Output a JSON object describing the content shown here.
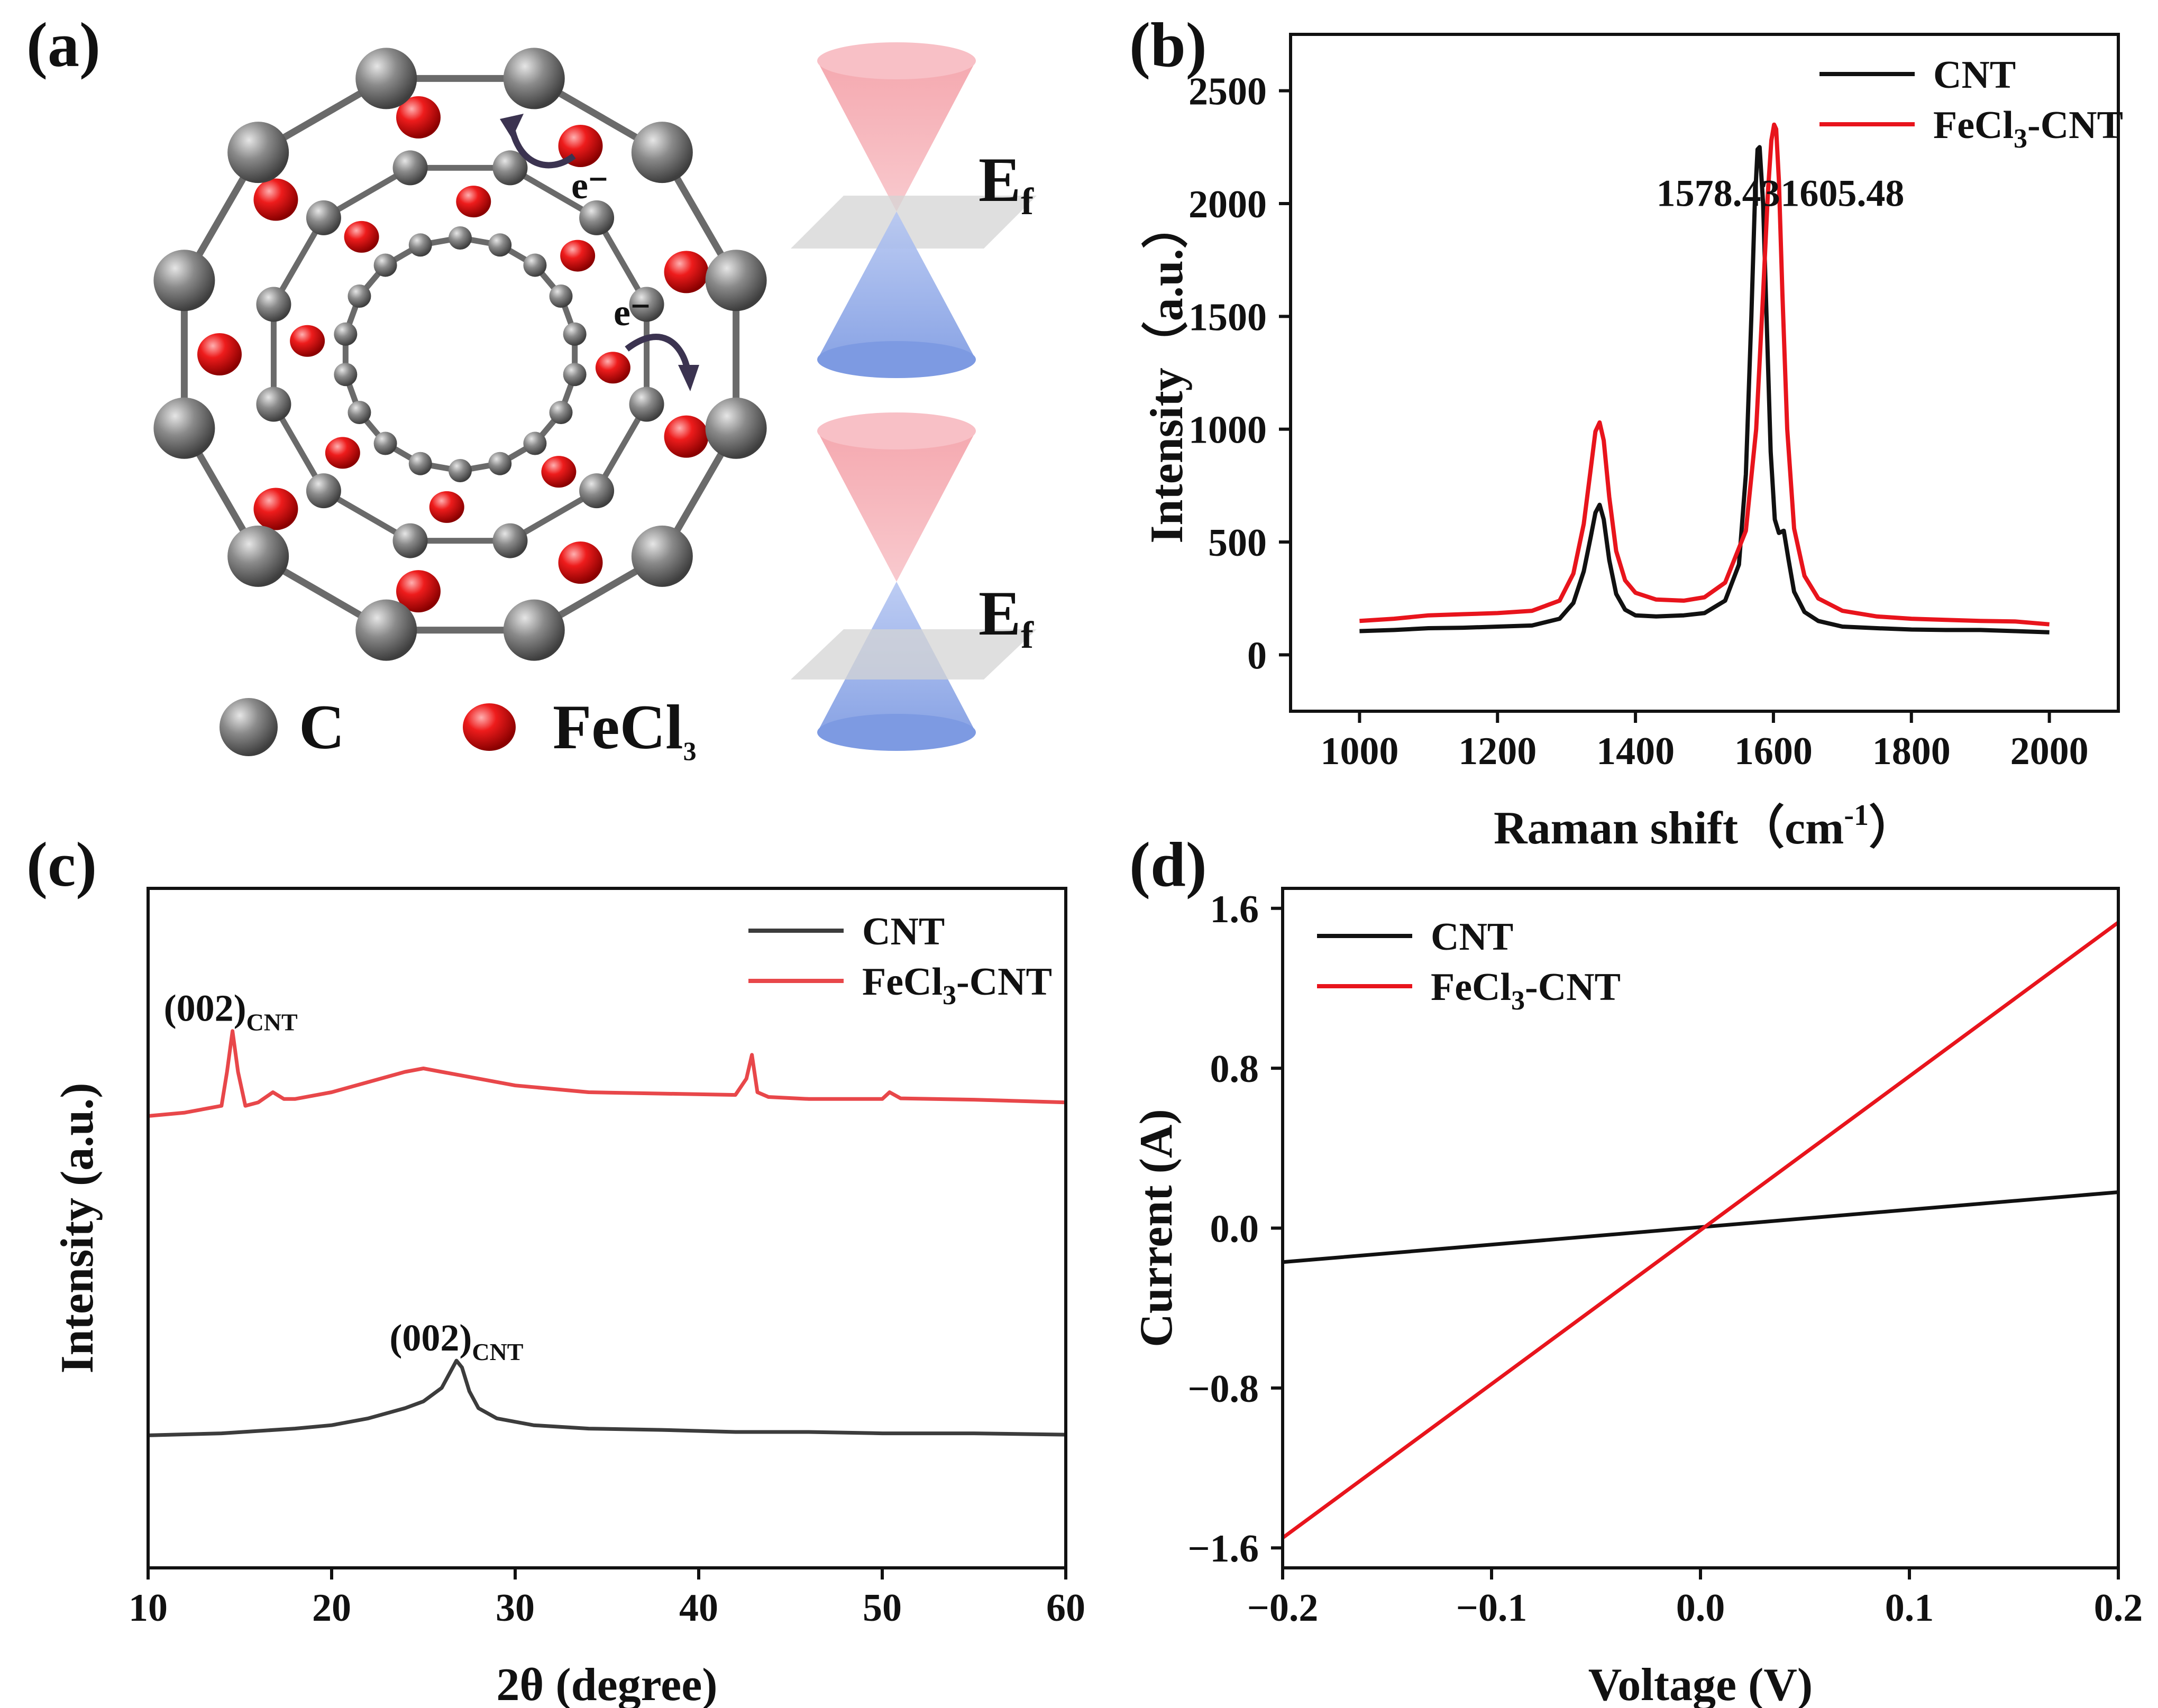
{
  "figure": {
    "panels": [
      "(a)",
      "(b)",
      "(c)",
      "(d)"
    ]
  },
  "diagram_a": {
    "electron_label": "e⁻",
    "fermi_label_main": "E",
    "fermi_label_sub": "f",
    "legend_c": "C",
    "legend_fecl3_main": "FeCl",
    "legend_fecl3_sub": "3",
    "colors": {
      "carbon": "#6e6e6e",
      "fecl3": "#d81010",
      "cone_top": "#f5a0a8",
      "cone_bottom": "#8aa6e6",
      "plane": "#d4d4d4",
      "arrow": "#3b3350"
    }
  },
  "chart_data": [
    {
      "id": "b",
      "type": "line",
      "xlabel_main": "Raman shift（cm",
      "xlabel_sup": "-1",
      "xlabel_end": "）",
      "ylabel": "Intensity（a.u.）",
      "xlim": [
        900,
        2100
      ],
      "ylim": [
        -250,
        2750
      ],
      "xticks": [
        "1000",
        "1200",
        "1400",
        "1600",
        "1800",
        "2000"
      ],
      "yticks": [
        "0",
        "500",
        "1000",
        "1500",
        "2000",
        "2500"
      ],
      "legend_position": "top-right",
      "series": [
        {
          "name": "CNT",
          "color": "#111111",
          "x": [
            1000,
            1050,
            1100,
            1150,
            1200,
            1250,
            1290,
            1310,
            1325,
            1335,
            1342,
            1348,
            1354,
            1362,
            1372,
            1385,
            1400,
            1430,
            1470,
            1500,
            1530,
            1550,
            1560,
            1568,
            1573,
            1577,
            1580,
            1585,
            1590,
            1596,
            1602,
            1608,
            1615,
            1622,
            1630,
            1645,
            1665,
            1700,
            1750,
            1800,
            1850,
            1900,
            1950,
            2000
          ],
          "y": [
            105,
            110,
            118,
            120,
            125,
            130,
            160,
            230,
            370,
            520,
            630,
            665,
            600,
            420,
            270,
            200,
            175,
            170,
            175,
            185,
            240,
            400,
            800,
            1500,
            2000,
            2240,
            2250,
            2000,
            1500,
            900,
            600,
            540,
            550,
            420,
            280,
            190,
            150,
            125,
            118,
            112,
            110,
            110,
            105,
            100
          ]
        },
        {
          "name": "FeCl3-CNT",
          "color": "#e8141c",
          "x": [
            1000,
            1050,
            1100,
            1150,
            1200,
            1250,
            1290,
            1310,
            1325,
            1335,
            1342,
            1348,
            1354,
            1362,
            1372,
            1385,
            1400,
            1430,
            1470,
            1500,
            1530,
            1560,
            1575,
            1585,
            1592,
            1597,
            1601,
            1604,
            1608,
            1613,
            1620,
            1630,
            1645,
            1665,
            1700,
            1750,
            1800,
            1850,
            1900,
            1950,
            2000
          ],
          "y": [
            150,
            160,
            175,
            180,
            185,
            195,
            240,
            360,
            580,
            820,
            990,
            1030,
            950,
            700,
            460,
            330,
            275,
            245,
            240,
            255,
            320,
            550,
            1000,
            1600,
            2050,
            2280,
            2350,
            2330,
            2100,
            1600,
            1000,
            560,
            350,
            250,
            195,
            170,
            160,
            155,
            150,
            148,
            135
          ]
        }
      ],
      "legend": [
        {
          "main": "CNT",
          "sub": "",
          "tail": ""
        },
        {
          "main": "FeCl",
          "sub": "3",
          "tail": "-CNT"
        }
      ],
      "annotations": [
        {
          "text": "1578.43",
          "x": 1520,
          "y": 1990
        },
        {
          "text": "1605.48",
          "x": 1700,
          "y": 1990
        }
      ]
    },
    {
      "id": "c",
      "type": "line",
      "xlabel": "2θ (degree)",
      "ylabel": "Intensity (a.u.)",
      "xlim": [
        10,
        60
      ],
      "ylim": [
        0,
        100
      ],
      "xticks": [
        "10",
        "20",
        "30",
        "40",
        "50",
        "60"
      ],
      "yticks": [],
      "legend_position": "top-right",
      "series": [
        {
          "name": "CNT",
          "color": "#3c3c3c",
          "x": [
            10,
            14,
            18,
            20,
            22,
            24,
            25,
            26,
            26.5,
            26.8,
            27.1,
            27.5,
            28,
            29,
            31,
            34,
            38,
            42,
            46,
            50,
            55,
            60
          ],
          "y": [
            19.5,
            19.8,
            20.5,
            21,
            22,
            23.5,
            24.5,
            26.5,
            29,
            30.5,
            29.5,
            26,
            23.5,
            22,
            21,
            20.5,
            20.3,
            20,
            20,
            19.8,
            19.8,
            19.6
          ]
        },
        {
          "name": "FeCl3-CNT",
          "color": "#e8474a",
          "x": [
            10,
            12,
            14,
            14.3,
            14.6,
            14.9,
            15.3,
            16,
            16.8,
            17.4,
            18,
            20,
            22,
            24,
            25,
            26,
            28,
            30,
            34,
            38,
            42,
            42.6,
            42.9,
            43.2,
            43.8,
            46,
            50,
            50.4,
            51,
            55,
            60
          ],
          "y": [
            66.5,
            67,
            68,
            73,
            79,
            73,
            68,
            68.5,
            70,
            69,
            69,
            70,
            71.5,
            73,
            73.5,
            73,
            72,
            71,
            70,
            69.8,
            69.6,
            72,
            75.5,
            70,
            69.3,
            69,
            69,
            70,
            69.1,
            68.9,
            68.5
          ]
        }
      ],
      "legend": [
        {
          "main": "CNT",
          "sub": "",
          "tail": ""
        },
        {
          "main": "FeCl",
          "sub": "3",
          "tail": "-CNT"
        }
      ],
      "annotations": [
        {
          "main": "(002)",
          "sub": "CNT",
          "x": 14.5,
          "y": 80.5
        },
        {
          "main": "(002)",
          "sub": "CNT",
          "x": 26.8,
          "y": 32
        }
      ]
    },
    {
      "id": "d",
      "type": "line",
      "xlabel": "Voltage (V)",
      "ylabel": "Current (A)",
      "xlim": [
        -0.2,
        0.2
      ],
      "ylim": [
        -1.7,
        1.7
      ],
      "xticks": [
        "−0.2",
        "−0.1",
        "0.0",
        "0.1",
        "0.2"
      ],
      "yticks": [
        "−1.6",
        "−0.8",
        "0.0",
        "0.8",
        "1.6"
      ],
      "legend_position": "top-left",
      "series": [
        {
          "name": "CNT",
          "color": "#111111",
          "x": [
            -0.2,
            0.2
          ],
          "y": [
            -0.17,
            0.18
          ]
        },
        {
          "name": "FeCl3-CNT",
          "color": "#e8141c",
          "x": [
            -0.2,
            0.2
          ],
          "y": [
            -1.55,
            1.53
          ]
        }
      ],
      "legend": [
        {
          "main": "CNT",
          "sub": "",
          "tail": ""
        },
        {
          "main": "FeCl",
          "sub": "3",
          "tail": "-CNT"
        }
      ]
    }
  ]
}
